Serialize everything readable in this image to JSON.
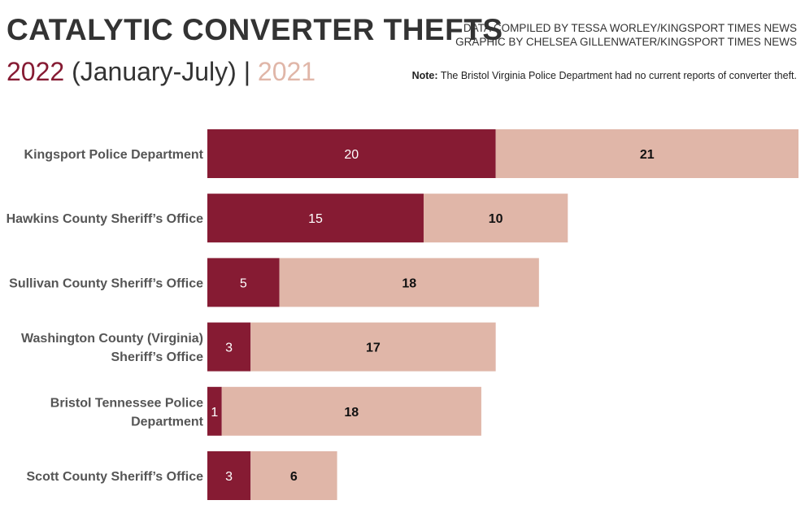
{
  "header": {
    "title": "CATALYTIC CONVERTER THEFTS",
    "legend_2022": "2022",
    "legend_2022_range": "(January-July)",
    "legend_sep": "|",
    "legend_2021": "2021",
    "credit_data": "DATA COMPILED BY TESSA WORLEY/KINGSPORT TIMES NEWS",
    "credit_graphic": "GRAPHIC BY CHELSEA GILLENWATER/KINGSPORT TIMES NEWS",
    "note_label": "Note:",
    "note_text": "The Bristol Virginia Police Department had no current reports of converter theft."
  },
  "colors": {
    "y2022": "#861b33",
    "y2021": "#e0b6a8",
    "label_on_dark": "#ffffff",
    "label_on_light": "#111111"
  },
  "chart_data": {
    "type": "bar",
    "orientation": "horizontal",
    "stacked": true,
    "categories": [
      [
        "Kingsport Police Department"
      ],
      [
        "Hawkins County Sheriff’s Office"
      ],
      [
        "Sullivan County Sheriff’s Office"
      ],
      [
        "Washington County (Virginia)",
        "Sheriff’s Office"
      ],
      [
        "Bristol Tennessee Police",
        "Department"
      ],
      [
        "Scott County Sheriff’s Office"
      ]
    ],
    "series": [
      {
        "name": "2022 (January-July)",
        "values": [
          20,
          15,
          5,
          3,
          1,
          3
        ]
      },
      {
        "name": "2021",
        "values": [
          21,
          10,
          18,
          17,
          18,
          6
        ]
      }
    ],
    "xlim": [
      0,
      41
    ],
    "grid": false,
    "legend": "top-left"
  }
}
